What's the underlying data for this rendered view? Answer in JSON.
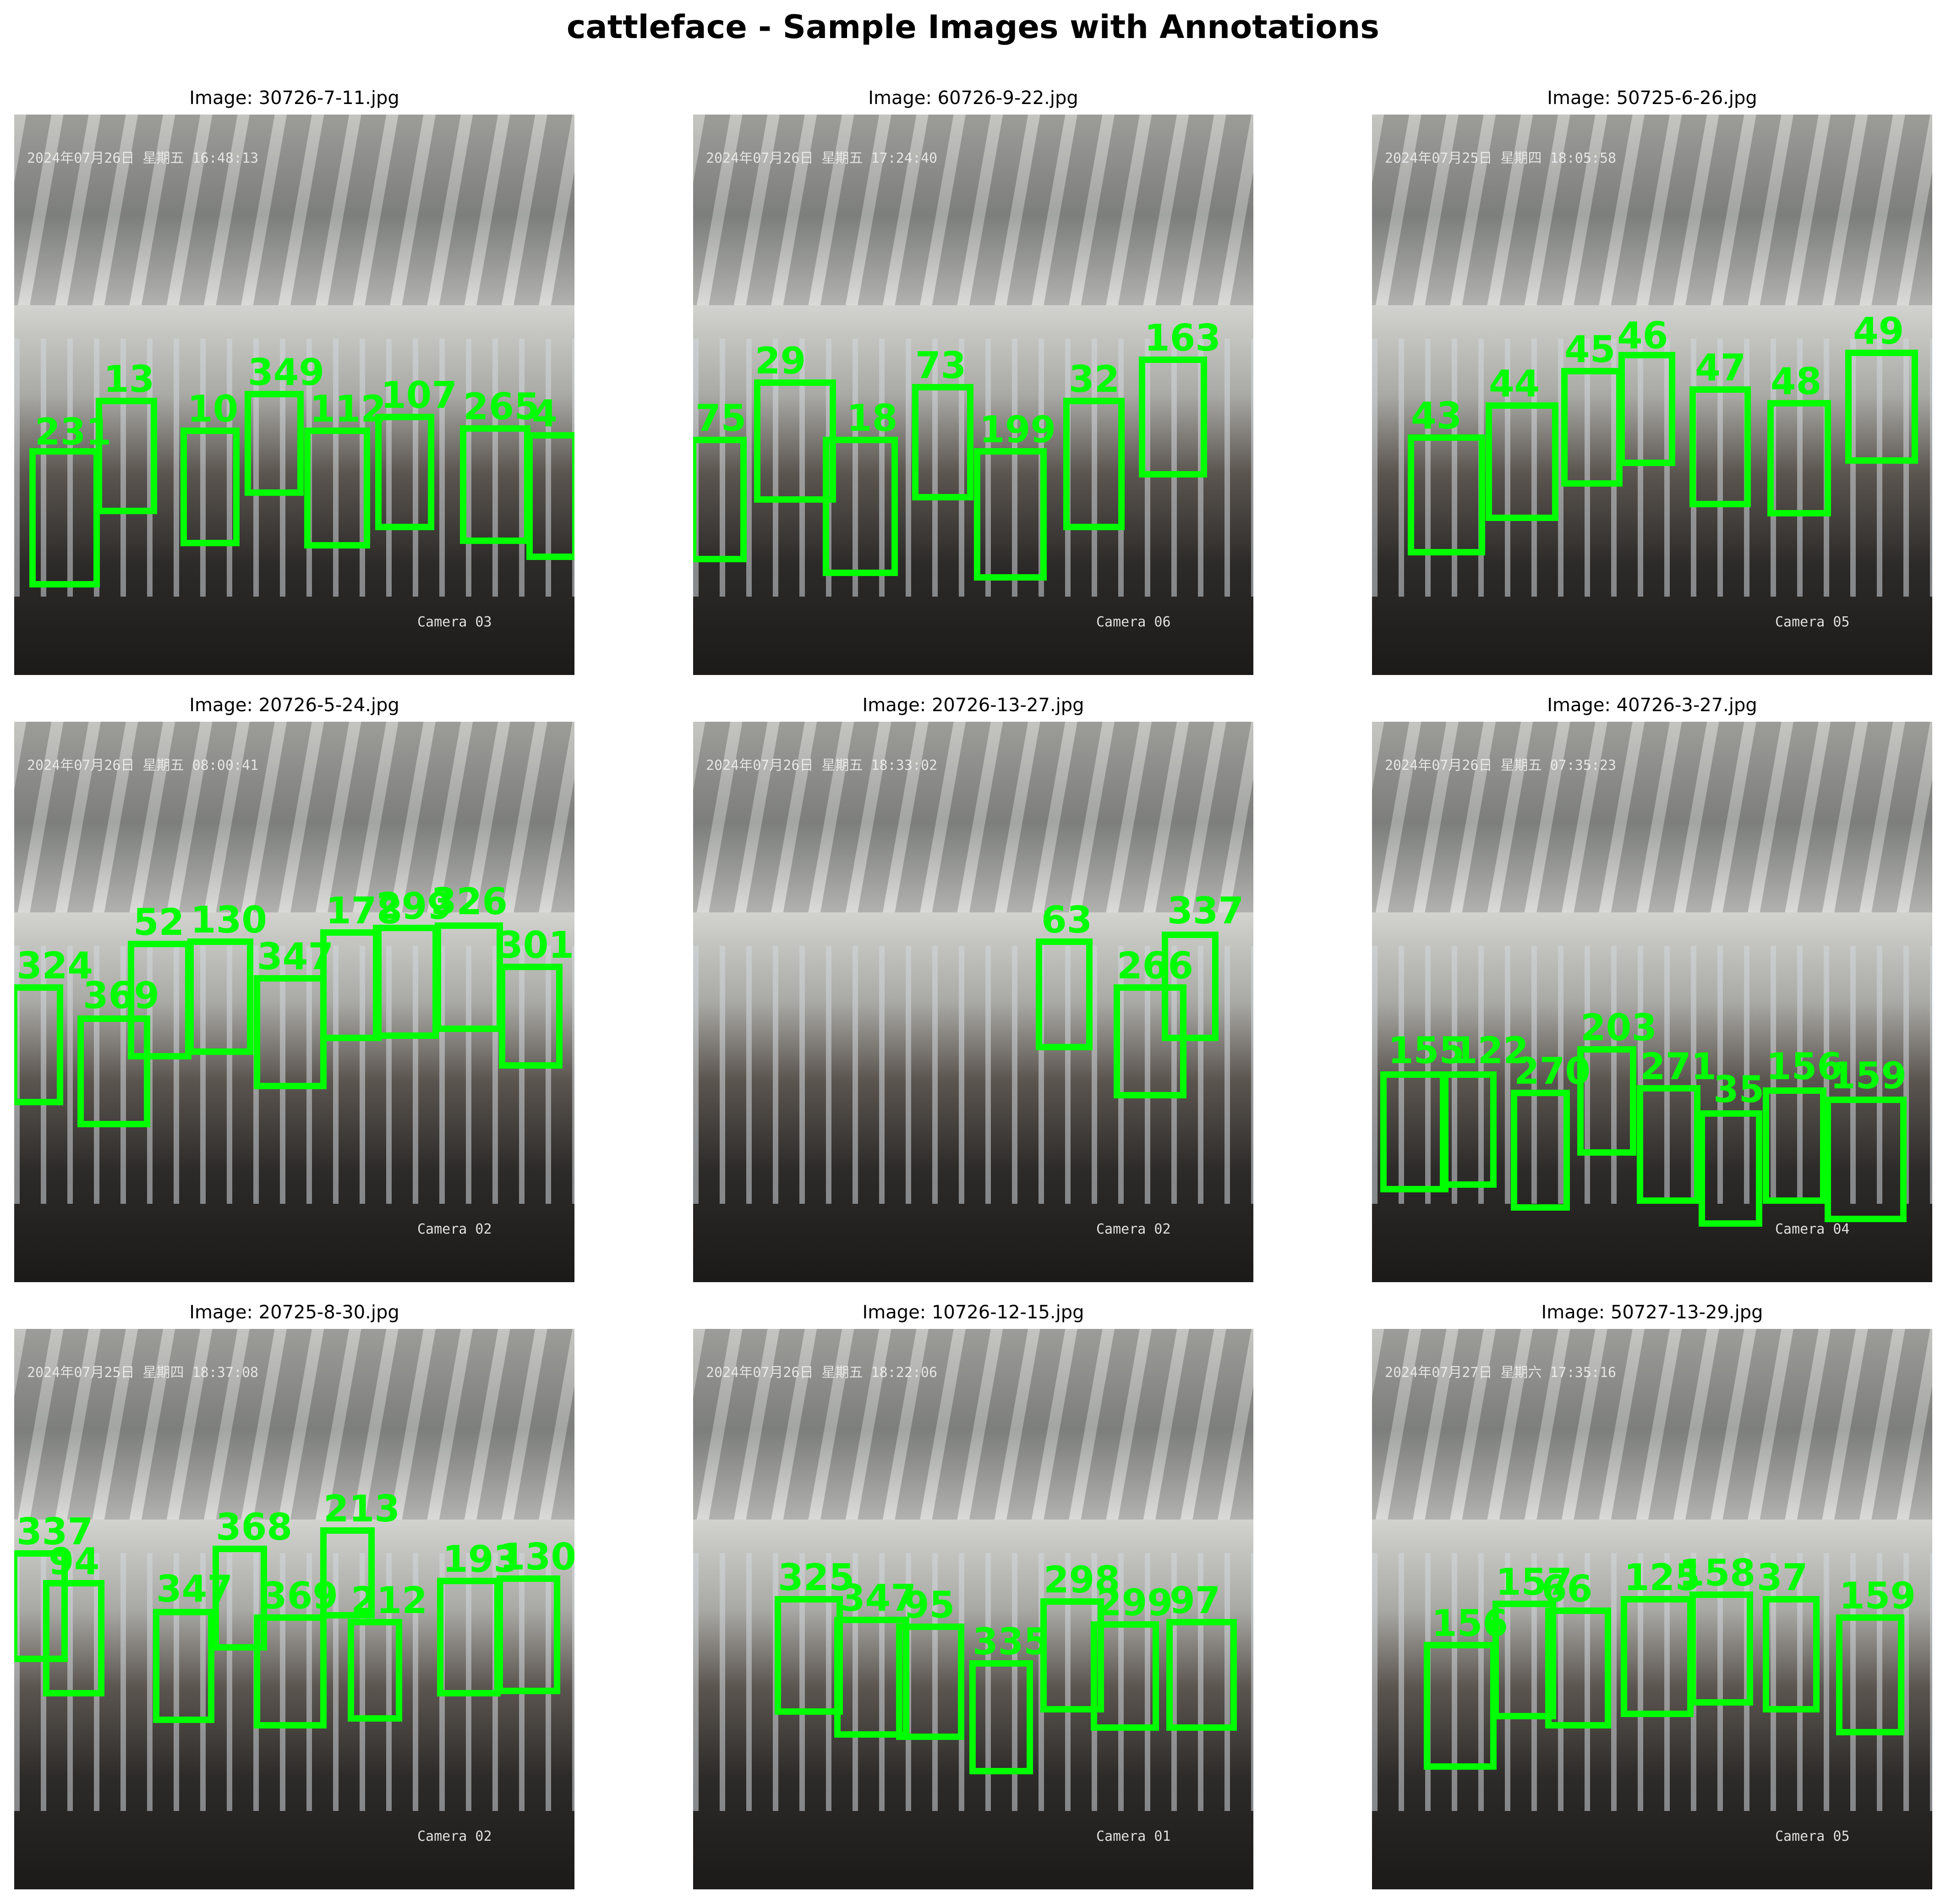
{
  "figure": {
    "title": "cattleface - Sample Images with Annotations",
    "box_color": "#00ff00",
    "panels": [
      {
        "caption": "Image: 30726-7-11.jpg",
        "stamp": "2024年07月26日 星期五 16:48:13",
        "camera": "Camera 03",
        "labels": [
          "231",
          "13",
          "10",
          "349",
          "112",
          "107",
          "265",
          "4"
        ]
      },
      {
        "caption": "Image: 60726-9-22.jpg",
        "stamp": "2024年07月26日 星期五 17:24:40",
        "camera": "Camera 06",
        "labels": [
          "75",
          "29",
          "18",
          "73",
          "199",
          "32",
          "163"
        ]
      },
      {
        "caption": "Image: 50725-6-26.jpg",
        "stamp": "2024年07月25日 星期四 18:05:58",
        "camera": "Camera 05",
        "labels": [
          "43",
          "44",
          "45",
          "46",
          "47",
          "48",
          "49"
        ]
      },
      {
        "caption": "Image: 20726-5-24.jpg",
        "stamp": "2024年07月26日 星期五 08:00:41",
        "camera": "Camera 02",
        "labels": [
          "324",
          "369",
          "52",
          "130",
          "347",
          "178",
          "299",
          "326",
          "301"
        ]
      },
      {
        "caption": "Image: 20726-13-27.jpg",
        "stamp": "2024年07月26日 星期五 18:33:02",
        "camera": "Camera 02",
        "labels": [
          "63",
          "266",
          "337"
        ]
      },
      {
        "caption": "Image: 40726-3-27.jpg",
        "stamp": "2024年07月26日 星期五 07:35:23",
        "camera": "Camera 04",
        "labels": [
          "155",
          "122",
          "270",
          "203",
          "271",
          "35",
          "156",
          "159"
        ]
      },
      {
        "caption": "Image: 20725-8-30.jpg",
        "stamp": "2024年07月25日 星期四 18:37:08",
        "camera": "Camera 02",
        "labels": [
          "337",
          "94",
          "347",
          "368",
          "369",
          "213",
          "212",
          "193",
          "130"
        ]
      },
      {
        "caption": "Image: 10726-12-15.jpg",
        "stamp": "2024年07月26日 星期五 18:22:06",
        "camera": "Camera 01",
        "labels": [
          "325",
          "347",
          "95",
          "335",
          "298",
          "299",
          "97"
        ]
      },
      {
        "caption": "Image: 50727-13-29.jpg",
        "stamp": "2024年07月27日 星期六 17:35:16",
        "camera": "Camera 05",
        "labels": [
          "156",
          "157",
          "66",
          "125",
          "158",
          "37",
          "159"
        ]
      }
    ]
  }
}
